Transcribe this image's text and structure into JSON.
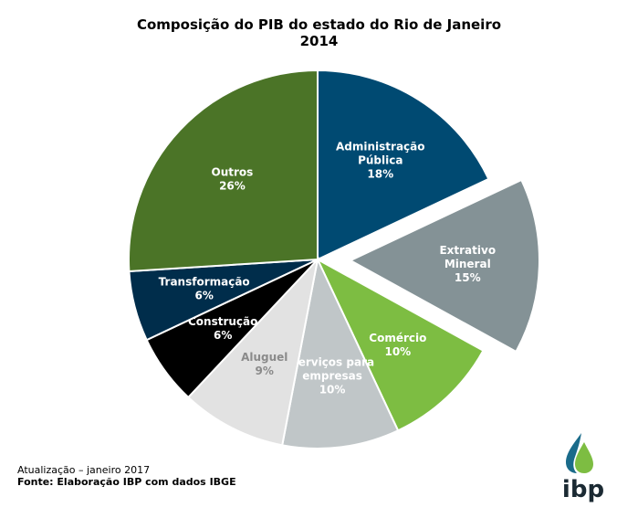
{
  "chart_data": {
    "type": "pie",
    "title_line1": "Composição do PIB do estado do Rio de Janeiro",
    "title_line2": "2014",
    "start_angle_deg": 0,
    "direction": "clockwise",
    "slices": [
      {
        "label": [
          "Administração",
          "Pública"
        ],
        "value": 18,
        "value_label": "18%",
        "color": "#004a72",
        "text_color": "#ffffff",
        "exploded": false
      },
      {
        "label": [
          "Extrativo",
          "Mineral"
        ],
        "value": 15,
        "value_label": "15%",
        "color": "#849296",
        "text_color": "#ffffff",
        "exploded": true
      },
      {
        "label": [
          "Comércio"
        ],
        "value": 10,
        "value_label": "10%",
        "color": "#7dbd42",
        "text_color": "#ffffff",
        "exploded": false
      },
      {
        "label": [
          "Serviços para",
          "empresas"
        ],
        "value": 10,
        "value_label": "10%",
        "color": "#c0c6c8",
        "text_color": "#ffffff",
        "exploded": false
      },
      {
        "label": [
          "Aluguel"
        ],
        "value": 9,
        "value_label": "9%",
        "color": "#e2e2e2",
        "text_color": "#8a8a8a",
        "exploded": false
      },
      {
        "label": [
          "Construção"
        ],
        "value": 6,
        "value_label": "6%",
        "color": "#000000",
        "text_color": "#ffffff",
        "exploded": false
      },
      {
        "label": [
          "Transformação"
        ],
        "value": 6,
        "value_label": "6%",
        "color": "#002d4b",
        "text_color": "#ffffff",
        "exploded": false
      },
      {
        "label": [
          "Outros"
        ],
        "value": 26,
        "value_label": "26%",
        "color": "#4b7427",
        "text_color": "#ffffff",
        "exploded": false
      }
    ]
  },
  "footer": {
    "update": "Atualização – janeiro 2017",
    "source": "Fonte: Elaboração IBP com dados IBGE"
  },
  "logo": {
    "text": "ibp",
    "colors": {
      "drop_dark": "#1a6b8a",
      "drop_light": "#7dbd42",
      "text": "#1b2a33"
    }
  }
}
